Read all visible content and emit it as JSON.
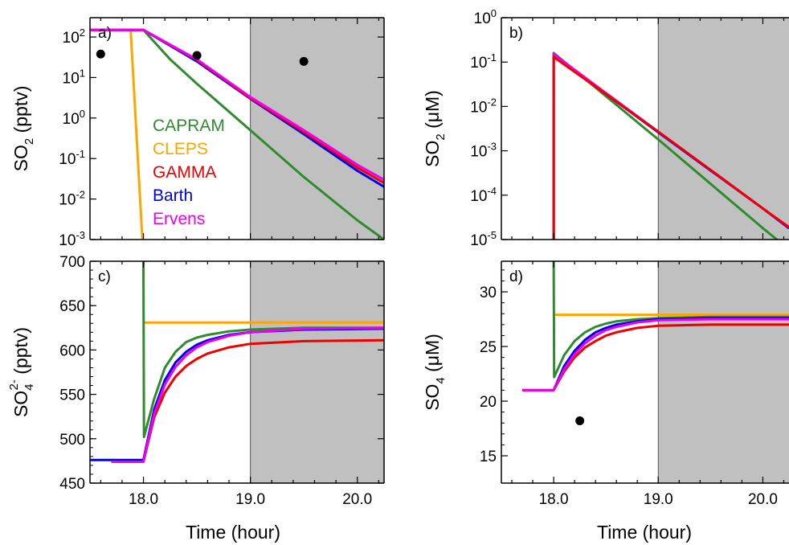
{
  "figure": {
    "xlabel": "Time (hour)",
    "night_start": 19.0
  },
  "colors": {
    "CAPRAM": "#2e8b2e",
    "CLEPS": "#ffa500",
    "GAMMA": "#ee0000",
    "Barth": "#0000ee",
    "Ervens": "#ee00ee",
    "night_shade": "#c0c0c0",
    "observation": "#000000"
  },
  "legend": [
    {
      "name": "CAPRAM",
      "color": "#2e8b2e"
    },
    {
      "name": "CLEPS",
      "color": "#ffa500"
    },
    {
      "name": "GAMMA",
      "color": "#ee0000"
    },
    {
      "name": "Barth",
      "color": "#0000ee"
    },
    {
      "name": "Ervens",
      "color": "#ee00ee"
    }
  ],
  "chart_data": [
    {
      "id": "a",
      "panel_label": "a)",
      "type": "line",
      "ylabel_main": "SO",
      "ylabel_sub": "2",
      "ylabel_sup": "",
      "ylabel_rest": " (pptv)",
      "yscale": "log",
      "xlim": [
        17.5,
        20.25
      ],
      "ylim": [
        0.001,
        300
      ],
      "xticks": [
        18.0,
        19.0,
        20.0
      ],
      "xtick_labels": [
        "18.0",
        "19.0",
        "20.0"
      ],
      "show_xtick_labels": false,
      "yticks": [
        0.001,
        0.01,
        0.1,
        1,
        10,
        100
      ],
      "ytick_labels": [
        {
          "base": "10",
          "exp": "-3"
        },
        {
          "base": "10",
          "exp": "-2"
        },
        {
          "base": "10",
          "exp": "-1"
        },
        {
          "base": "10",
          "exp": "0"
        },
        {
          "base": "10",
          "exp": "1"
        },
        {
          "base": "10",
          "exp": "2"
        }
      ],
      "show_legend": true,
      "series": [
        {
          "name": "CAPRAM",
          "x": [
            17.5,
            18.0,
            18.25,
            18.5,
            19.0,
            19.5,
            20.0,
            20.25
          ],
          "y": [
            150,
            150,
            28,
            7.0,
            0.5,
            0.035,
            0.003,
            0.001
          ]
        },
        {
          "name": "CLEPS",
          "x": [
            17.5,
            17.88,
            17.99
          ],
          "y": [
            150,
            150,
            0.001
          ]
        },
        {
          "name": "Barth",
          "x": [
            17.5,
            18.0,
            18.5,
            19.0,
            19.5,
            20.0,
            20.25
          ],
          "y": [
            150,
            150,
            25,
            3.0,
            0.4,
            0.05,
            0.02
          ]
        },
        {
          "name": "GAMMA",
          "x": [
            17.5,
            18.0,
            18.5,
            19.0,
            19.5,
            20.0,
            20.25
          ],
          "y": [
            150,
            150,
            27,
            3.1,
            0.45,
            0.06,
            0.025
          ]
        },
        {
          "name": "Ervens",
          "x": [
            17.5,
            18.0,
            18.5,
            19.0,
            19.5,
            20.0,
            20.25
          ],
          "y": [
            150,
            150,
            28,
            3.3,
            0.5,
            0.07,
            0.03
          ]
        }
      ],
      "observations": {
        "x": [
          17.6,
          18.5,
          19.5
        ],
        "y": [
          38,
          35,
          25
        ]
      }
    },
    {
      "id": "b",
      "panel_label": "b)",
      "type": "line",
      "ylabel_main": "SO",
      "ylabel_sub": "2",
      "ylabel_sup": "",
      "ylabel_rest": " (μM)",
      "yscale": "log",
      "xlim": [
        17.5,
        20.25
      ],
      "ylim": [
        1e-05,
        1
      ],
      "xticks": [
        18.0,
        19.0,
        20.0
      ],
      "xtick_labels": [
        "18.0",
        "19.0",
        "20.0"
      ],
      "show_xtick_labels": false,
      "yticks": [
        1e-05,
        0.0001,
        0.001,
        0.01,
        0.1,
        1
      ],
      "ytick_labels": [
        {
          "base": "10",
          "exp": "-5"
        },
        {
          "base": "10",
          "exp": "-4"
        },
        {
          "base": "10",
          "exp": "-3"
        },
        {
          "base": "10",
          "exp": "-2"
        },
        {
          "base": "10",
          "exp": "-1"
        },
        {
          "base": "10",
          "exp": "0"
        }
      ],
      "show_legend": false,
      "series": [
        {
          "name": "CAPRAM",
          "x": [
            18.0,
            18.0,
            18.5,
            19.0,
            19.5,
            20.0,
            20.25
          ],
          "y": [
            1e-05,
            0.16,
            0.017,
            0.0018,
            0.00018,
            1.8e-05,
            6e-06
          ]
        },
        {
          "name": "Barth",
          "x": [
            18.0,
            18.0,
            18.5,
            19.0,
            19.5,
            20.0,
            20.25
          ],
          "y": [
            1e-05,
            0.14,
            0.019,
            0.0026,
            0.00036,
            5e-05,
            1.8e-05
          ]
        },
        {
          "name": "Ervens",
          "x": [
            18.0,
            18.0,
            18.5,
            19.0,
            19.5,
            20.0,
            20.25
          ],
          "y": [
            1e-05,
            0.15,
            0.02,
            0.0027,
            0.00037,
            5e-05,
            1.9e-05
          ]
        },
        {
          "name": "GAMMA",
          "x": [
            18.0,
            18.0,
            18.5,
            19.0,
            19.5,
            20.0,
            20.25
          ],
          "y": [
            1e-05,
            0.13,
            0.019,
            0.0027,
            0.00037,
            5e-05,
            1.9e-05
          ]
        }
      ],
      "observations": {
        "x": [],
        "y": []
      }
    },
    {
      "id": "c",
      "panel_label": "c)",
      "type": "line",
      "ylabel_main": "SO",
      "ylabel_sub": "4",
      "ylabel_sup": "2-",
      "ylabel_rest": " (pptv)",
      "yscale": "linear",
      "xlim": [
        17.5,
        20.25
      ],
      "ylim": [
        450,
        700
      ],
      "xticks": [
        18.0,
        19.0,
        20.0
      ],
      "xtick_labels": [
        "18.0",
        "19.0",
        "20.0"
      ],
      "show_xtick_labels": true,
      "yticks": [
        450,
        500,
        550,
        600,
        650,
        700
      ],
      "ytick_labels": [
        {
          "base": "450",
          "exp": ""
        },
        {
          "base": "500",
          "exp": ""
        },
        {
          "base": "550",
          "exp": ""
        },
        {
          "base": "600",
          "exp": ""
        },
        {
          "base": "650",
          "exp": ""
        },
        {
          "base": "700",
          "exp": ""
        }
      ],
      "show_legend": false,
      "series": [
        {
          "name": "CLEPS",
          "x": [
            18.0,
            20.25
          ],
          "y": [
            631,
            631
          ]
        },
        {
          "name": "CAPRAM",
          "x": [
            18.0,
            18.0,
            18.005,
            18.1,
            18.2,
            18.3,
            18.4,
            18.5,
            18.6,
            18.8,
            19.0,
            19.5,
            20.25
          ],
          "y": [
            700,
            700,
            502,
            545,
            580,
            598,
            609,
            614,
            617,
            621,
            623,
            625,
            625
          ]
        },
        {
          "name": "Barth",
          "x": [
            17.5,
            18.0,
            18.1,
            18.2,
            18.3,
            18.4,
            18.5,
            18.6,
            18.8,
            19.0,
            19.5,
            20.25
          ],
          "y": [
            476,
            476,
            533,
            566,
            586,
            598,
            606,
            611,
            617,
            620,
            623,
            624
          ]
        },
        {
          "name": "GAMMA",
          "x": [
            17.7,
            18.0,
            18.1,
            18.2,
            18.3,
            18.4,
            18.5,
            18.6,
            18.8,
            19.0,
            19.5,
            20.25
          ],
          "y": [
            474,
            474,
            524,
            552,
            570,
            582,
            590,
            596,
            603,
            607,
            610,
            611
          ]
        },
        {
          "name": "Ervens",
          "x": [
            17.7,
            18.0,
            18.1,
            18.2,
            18.3,
            18.4,
            18.5,
            18.6,
            18.8,
            19.0,
            19.5,
            20.25
          ],
          "y": [
            474,
            474,
            528,
            561,
            581,
            594,
            603,
            609,
            616,
            620,
            624,
            625
          ]
        }
      ],
      "observations": {
        "x": [],
        "y": []
      }
    },
    {
      "id": "d",
      "panel_label": "d)",
      "type": "line",
      "ylabel_main": "SO",
      "ylabel_sub": "4",
      "ylabel_sup": "",
      "ylabel_rest": " (μM)",
      "yscale": "linear",
      "xlim": [
        17.5,
        20.25
      ],
      "ylim": [
        12.5,
        32.8
      ],
      "xticks": [
        18.0,
        19.0,
        20.0
      ],
      "xtick_labels": [
        "18.0",
        "19.0",
        "20.0"
      ],
      "show_xtick_labels": true,
      "yticks": [
        15,
        20,
        25,
        30
      ],
      "ytick_labels": [
        {
          "base": "15",
          "exp": ""
        },
        {
          "base": "20",
          "exp": ""
        },
        {
          "base": "25",
          "exp": ""
        },
        {
          "base": "30",
          "exp": ""
        }
      ],
      "show_legend": false,
      "series": [
        {
          "name": "CLEPS",
          "x": [
            18.0,
            20.25
          ],
          "y": [
            27.9,
            27.9
          ]
        },
        {
          "name": "CAPRAM",
          "x": [
            18.0,
            18.0,
            18.005,
            18.1,
            18.2,
            18.3,
            18.4,
            18.5,
            18.6,
            18.8,
            19.0,
            19.5,
            20.25
          ],
          "y": [
            32.8,
            32.8,
            22.2,
            24.2,
            25.5,
            26.3,
            26.8,
            27.1,
            27.3,
            27.5,
            27.6,
            27.7,
            27.7
          ]
        },
        {
          "name": "Barth",
          "x": [
            17.7,
            18.0,
            18.1,
            18.2,
            18.3,
            18.4,
            18.5,
            18.6,
            18.8,
            19.0,
            19.5,
            20.25
          ],
          "y": [
            21.0,
            21.0,
            23.2,
            24.6,
            25.6,
            26.3,
            26.7,
            27.0,
            27.3,
            27.5,
            27.6,
            27.6
          ]
        },
        {
          "name": "GAMMA",
          "x": [
            17.7,
            18.0,
            18.1,
            18.2,
            18.3,
            18.4,
            18.5,
            18.6,
            18.8,
            19.0,
            19.5,
            20.25
          ],
          "y": [
            21.0,
            21.0,
            22.7,
            24.0,
            24.9,
            25.5,
            26.0,
            26.3,
            26.7,
            26.9,
            27.0,
            27.0
          ]
        },
        {
          "name": "Ervens",
          "x": [
            17.7,
            18.0,
            18.1,
            18.2,
            18.3,
            18.4,
            18.5,
            18.6,
            18.8,
            19.0,
            19.5,
            20.25
          ],
          "y": [
            21.0,
            21.0,
            22.9,
            24.3,
            25.3,
            26.0,
            26.5,
            26.8,
            27.2,
            27.4,
            27.5,
            27.5
          ]
        }
      ],
      "observations": {
        "x": [
          18.25
        ],
        "y": [
          18.2
        ]
      }
    }
  ]
}
